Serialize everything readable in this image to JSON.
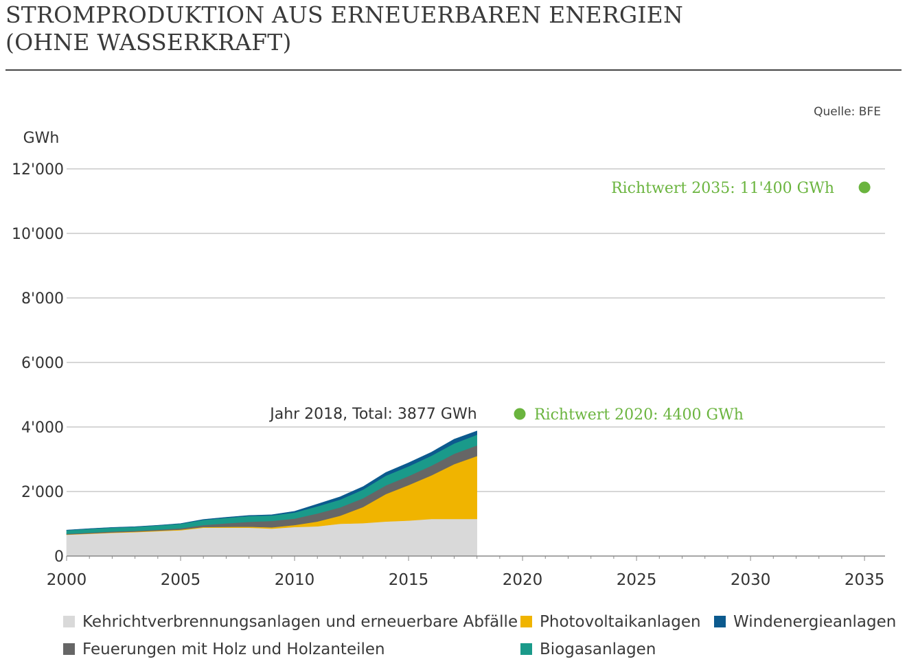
{
  "title_lines": [
    "STROMPRODUKTION AUS ERNEUERBAREN ENERGIEN",
    "(OHNE WASSERKRAFT)"
  ],
  "source": "Quelle: BFE",
  "chart_data": {
    "type": "area",
    "stacked": true,
    "ylabel": "GWh",
    "xlim": [
      2000,
      2035.9
    ],
    "ylim": [
      0,
      12000
    ],
    "x_ticks": [
      2000,
      2005,
      2010,
      2015,
      2020,
      2025,
      2030,
      2035
    ],
    "y_ticks": [
      0,
      2000,
      4000,
      6000,
      8000,
      10000,
      12000
    ],
    "y_tick_labels": [
      "0",
      "2'000",
      "4'000",
      "6'000",
      "8'000",
      "10'000",
      "12'000"
    ],
    "grid": "horizontal",
    "x": [
      2000,
      2001,
      2002,
      2003,
      2004,
      2005,
      2006,
      2007,
      2008,
      2009,
      2010,
      2011,
      2012,
      2013,
      2014,
      2015,
      2016,
      2017,
      2018
    ],
    "series": [
      {
        "name": "Kehrichtverbrennungsanlagen und erneuerbare Abfälle",
        "color": "#d9d9d9",
        "values": [
          660,
          690,
          720,
          740,
          770,
          800,
          880,
          880,
          880,
          850,
          900,
          920,
          1000,
          1020,
          1070,
          1100,
          1150,
          1150,
          1150
        ]
      },
      {
        "name": "Photovoltaikanlagen",
        "color": "#f0b400",
        "values": [
          10,
          10,
          12,
          15,
          18,
          20,
          20,
          25,
          30,
          40,
          60,
          150,
          250,
          500,
          850,
          1100,
          1350,
          1700,
          1950
        ]
      },
      {
        "name": "Feuerungen mit Holz und Holzanteilen",
        "color": "#666666",
        "values": [
          20,
          25,
          30,
          30,
          30,
          40,
          60,
          110,
          150,
          200,
          200,
          250,
          260,
          270,
          270,
          280,
          300,
          320,
          330
        ]
      },
      {
        "name": "Biogasanlagen",
        "color": "#1a9a8a",
        "values": [
          110,
          120,
          120,
          120,
          130,
          140,
          160,
          170,
          180,
          170,
          190,
          220,
          240,
          270,
          300,
          300,
          310,
          320,
          330
        ]
      },
      {
        "name": "Windenergieanlagen",
        "color": "#0c5a8e",
        "values": [
          5,
          5,
          5,
          5,
          5,
          8,
          15,
          16,
          19,
          20,
          37,
          70,
          88,
          90,
          101,
          110,
          108,
          132,
          117
        ]
      }
    ],
    "annotations": [
      {
        "text": "Jahr 2018, Total: 3877 GWh",
        "x": 2018,
        "y": 3877
      },
      {
        "text": "Richtwert 2020: 4400 GWh",
        "x": 2020,
        "y": 4400,
        "color": "#6ab43e"
      },
      {
        "text": "Richtwert 2035: 11'400 GWh",
        "x": 2035,
        "y": 11400,
        "color": "#6ab43e"
      }
    ],
    "legend_position": "bottom"
  }
}
